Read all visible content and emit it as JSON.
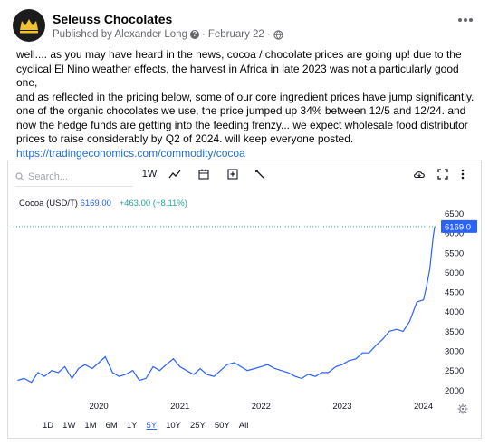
{
  "post": {
    "page_name": "Seleuss Chocolates",
    "published_by": "Published by Alexander Long",
    "date": "February 22",
    "separator": "·",
    "more_icon": "ellipsis-icon",
    "body_lines": [
      "well.... as you may have heard in the news, cocoa / chocolate prices are going up! due to the",
      "cyclical El Nino weather effects, the harvest in Africa in late 2023 was not a particularly good one,",
      "and as reflected in the pricing below, some of our core ingredient prices have jump significantly.",
      "one of the organic chocolates we use, the price jumped up 34% between 12/5 and 12/24.  and",
      "now the hedge funds are getting into the feeding frenzy...  we expect wholesale food distributor",
      "prices to raise considerably by Q2 of 2024. will keep everyone posted."
    ],
    "link": "https://tradingeconomics.com/commodity/cocoa"
  },
  "chart_toolbar": {
    "search_placeholder": "Search...",
    "interval": "1W",
    "icons": [
      "line-chart-icon",
      "calendar-icon",
      "add-compare-icon",
      "wrench-icon",
      "cloud-download-icon",
      "fullscreen-icon",
      "vertical-ellipsis-icon"
    ]
  },
  "legend": {
    "symbol": "Cocoa (USD/T)",
    "last": "6169.00",
    "change": "+463.00 (+8.11%)"
  },
  "ranges": [
    "1D",
    "1W",
    "1M",
    "6M",
    "1Y",
    "5Y",
    "10Y",
    "25Y",
    "50Y",
    "All"
  ],
  "active_range": "5Y",
  "colors": {
    "line": "#2962ff",
    "accent": "#2962ff",
    "positive": "#26a69a",
    "link": "#216fdb"
  },
  "chart_data": {
    "type": "line",
    "title": "",
    "series": [
      {
        "name": "Cocoa (USD/T)",
        "x": [
          2019.0,
          2019.08,
          2019.17,
          2019.25,
          2019.33,
          2019.42,
          2019.5,
          2019.58,
          2019.67,
          2019.75,
          2019.83,
          2019.92,
          2020.0,
          2020.08,
          2020.17,
          2020.25,
          2020.33,
          2020.42,
          2020.5,
          2020.58,
          2020.67,
          2020.75,
          2020.83,
          2020.92,
          2021.0,
          2021.08,
          2021.17,
          2021.25,
          2021.33,
          2021.42,
          2021.5,
          2021.58,
          2021.67,
          2021.75,
          2021.83,
          2021.92,
          2022.0,
          2022.08,
          2022.17,
          2022.25,
          2022.33,
          2022.42,
          2022.5,
          2022.58,
          2022.67,
          2022.75,
          2022.83,
          2022.92,
          2023.0,
          2023.08,
          2023.17,
          2023.25,
          2023.33,
          2023.42,
          2023.5,
          2023.58,
          2023.67,
          2023.75,
          2023.83,
          2023.92,
          2024.0,
          2024.04,
          2024.08,
          2024.12,
          2024.14
        ],
        "y": [
          2250,
          2300,
          2200,
          2450,
          2350,
          2500,
          2450,
          2600,
          2300,
          2550,
          2650,
          2550,
          2700,
          2850,
          2450,
          2350,
          2400,
          2500,
          2250,
          2300,
          2600,
          2500,
          2650,
          2800,
          2600,
          2500,
          2400,
          2550,
          2400,
          2350,
          2500,
          2650,
          2700,
          2600,
          2500,
          2550,
          2600,
          2650,
          2550,
          2500,
          2450,
          2350,
          2300,
          2400,
          2350,
          2450,
          2450,
          2600,
          2650,
          2750,
          2800,
          2950,
          2950,
          3150,
          3300,
          3500,
          3550,
          3500,
          3750,
          4250,
          4300,
          4650,
          5100,
          5900,
          6169
        ]
      }
    ],
    "x_ticks": [
      "2020",
      "2021",
      "2022",
      "2023",
      "2024"
    ],
    "x_tick_values": [
      2020,
      2021,
      2022,
      2023,
      2024
    ],
    "y_ticks": [
      "2000",
      "2500",
      "3000",
      "3500",
      "4000",
      "4500",
      "5000",
      "5500",
      "6000",
      "6500"
    ],
    "y_tick_values": [
      2000,
      2500,
      3000,
      3500,
      4000,
      4500,
      5000,
      5500,
      6000,
      6500
    ],
    "price_label": "6169.0",
    "xlim": [
      2018.95,
      2024.15
    ],
    "ylim": [
      1800,
      6650
    ],
    "grid": false,
    "legend": "top-left"
  }
}
